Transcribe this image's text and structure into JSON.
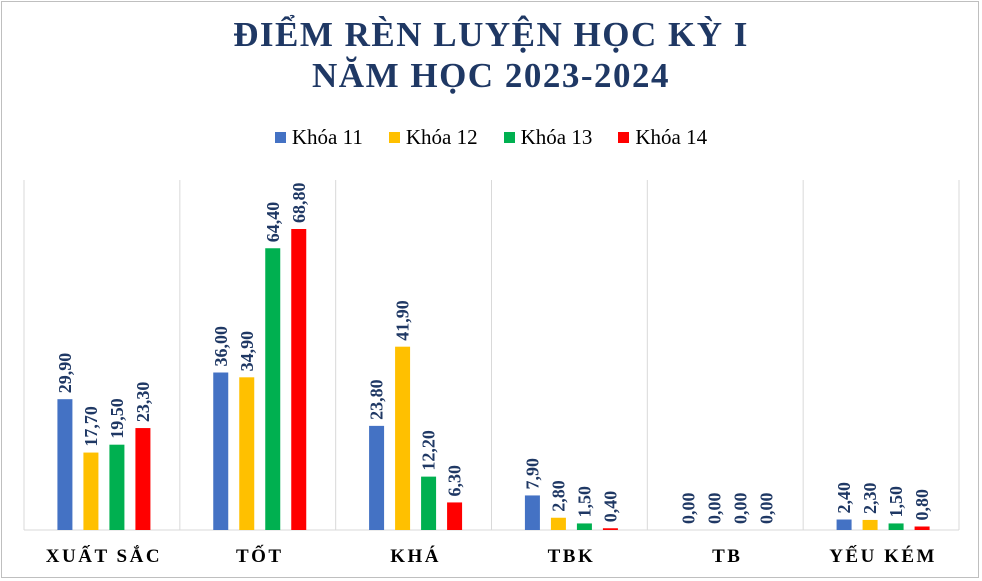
{
  "chart_data": {
    "type": "bar",
    "title_lines": [
      "ĐIỂM RÈN LUYỆN HỌC KỲ I",
      "NĂM HỌC 2023-2024"
    ],
    "categories": [
      "XUẤT SẮC",
      "TỐT",
      "KHÁ",
      "TBK",
      "TB",
      "YẾU KÉM"
    ],
    "series": [
      {
        "name": "Khóa 11",
        "color": "#4472c4",
        "values": [
          29.9,
          36.0,
          23.8,
          7.9,
          0.0,
          2.4
        ],
        "labels": [
          "29,90",
          "36,00",
          "23,80",
          "7,90",
          "0,00",
          "2,40"
        ]
      },
      {
        "name": "Khóa 12",
        "color": "#ffc000",
        "values": [
          17.7,
          34.9,
          41.9,
          2.8,
          0.0,
          2.3
        ],
        "labels": [
          "17,70",
          "34,90",
          "41,90",
          "2,80",
          "0,00",
          "2,30"
        ]
      },
      {
        "name": "Khóa 13",
        "color": "#00b050",
        "values": [
          19.5,
          64.4,
          12.2,
          1.5,
          0.0,
          1.5
        ],
        "labels": [
          "19,50",
          "64,40",
          "12,20",
          "1,50",
          "0,00",
          "1,50"
        ]
      },
      {
        "name": "Khóa 14",
        "color": "#ff0000",
        "values": [
          23.3,
          68.8,
          6.3,
          0.4,
          0.0,
          0.8
        ],
        "labels": [
          "23,30",
          "68,80",
          "6,30",
          "0,40",
          "0,00",
          "0,80"
        ]
      }
    ],
    "ylim": [
      0,
      80
    ],
    "legend_position": "top",
    "gridlines": "vertical-category-separators"
  }
}
